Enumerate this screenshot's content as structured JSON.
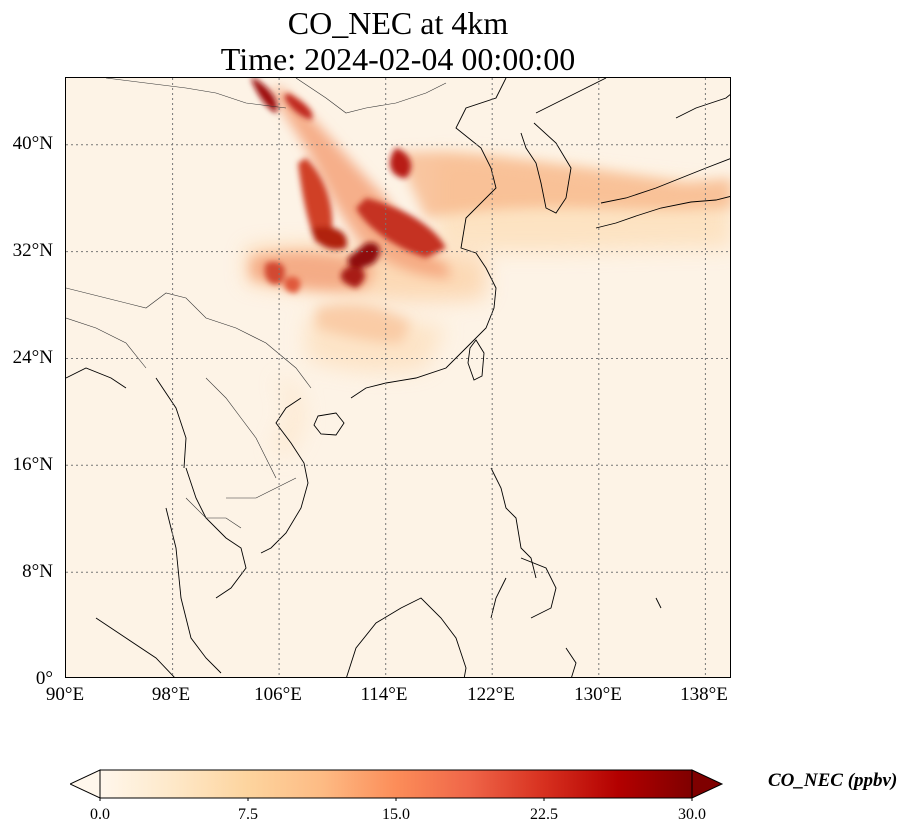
{
  "title": {
    "line1": "CO_NEC at 4km",
    "line2": "Time: 2024-02-04 00:00:00"
  },
  "axes": {
    "lon_range": [
      90,
      140
    ],
    "lat_range": [
      0,
      45
    ],
    "lon_ticks": [
      "90°E",
      "98°E",
      "106°E",
      "114°E",
      "122°E",
      "130°E",
      "138°E"
    ],
    "lat_ticks": [
      "0°",
      "8°N",
      "16°N",
      "24°N",
      "32°N",
      "40°N"
    ],
    "gridlines": "dotted"
  },
  "colorbar": {
    "label": "CO_NEC (ppbv)",
    "ticks": [
      "0.0",
      "7.5",
      "15.0",
      "22.5",
      "30.0"
    ],
    "range": [
      0,
      30
    ],
    "colormap": "OrRd",
    "extend": "both",
    "colors": [
      "#fff7ec",
      "#fee8c8",
      "#fdd49e",
      "#fdbb84",
      "#fc8d59",
      "#ef6548",
      "#d7301f",
      "#b30000",
      "#7f0000"
    ]
  },
  "colors": {
    "background": "#fdf3e6",
    "coastline": "#000000",
    "grid": "#777777"
  }
}
